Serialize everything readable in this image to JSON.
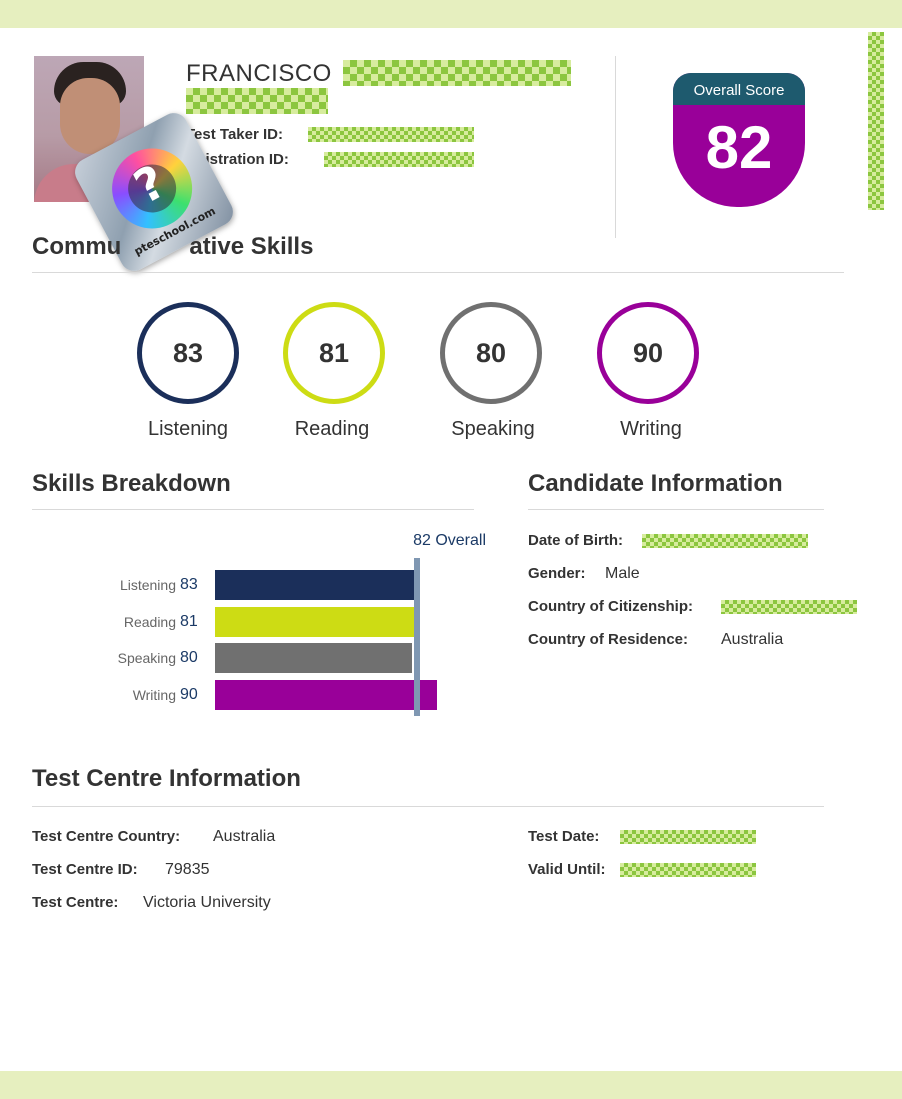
{
  "colors": {
    "band": "#e6efbf",
    "listening": "#1b2f5a",
    "reading": "#cddc14",
    "speaking": "#707070",
    "writing": "#990099",
    "overall_header": "#1e5a6e"
  },
  "header": {
    "first_name": "FRANCISCO",
    "test_taker_id_label": "Test Taker ID:",
    "registration_id_label": "egistration ID:",
    "seal_text": "pteschool.com",
    "seal_symbol": "?"
  },
  "overall": {
    "label": "Overall Score",
    "score": "82"
  },
  "communicative": {
    "title_left": "Commu",
    "title_right": "ative Skills",
    "skills": [
      {
        "name": "Listening",
        "score": "83"
      },
      {
        "name": "Reading",
        "score": "81"
      },
      {
        "name": "Speaking",
        "score": "80"
      },
      {
        "name": "Writing",
        "score": "90"
      }
    ]
  },
  "breakdown": {
    "title": "Skills Breakdown",
    "overall_label": "82 Overall"
  },
  "chart_data": {
    "type": "bar",
    "orientation": "horizontal",
    "categories": [
      "Listening",
      "Reading",
      "Speaking",
      "Writing"
    ],
    "values": [
      83,
      81,
      80,
      90
    ],
    "reference_line": {
      "value": 82,
      "label": "82 Overall"
    },
    "colors": [
      "#1b2f5a",
      "#cddc14",
      "#707070",
      "#990099"
    ]
  },
  "candidate": {
    "title": "Candidate Information",
    "dob_label": "Date of Birth:",
    "gender_label": "Gender:",
    "gender_value": "Male",
    "citizenship_label": "Country of Citizenship:",
    "residence_label": "Country of Residence:",
    "residence_value": "Australia"
  },
  "centre": {
    "title": "Test Centre Information",
    "country_label": "Test Centre Country:",
    "country_value": "Australia",
    "id_label": "Test Centre ID:",
    "id_value": "79835",
    "name_label": "Test Centre:",
    "name_value": "Victoria University",
    "test_date_label": "Test Date:",
    "valid_until_label": "Valid Until:"
  }
}
